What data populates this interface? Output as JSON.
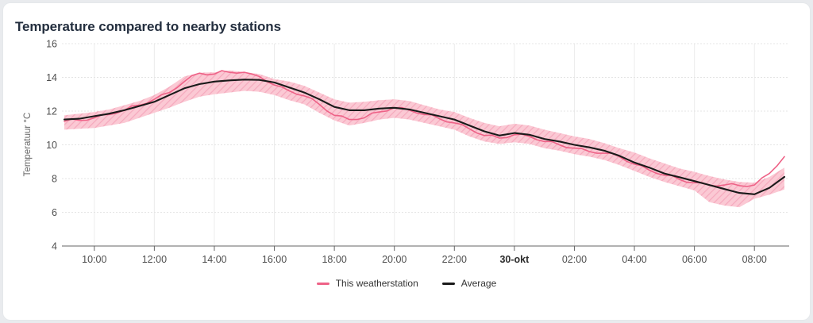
{
  "card": {
    "title": "Temperature compared to nearby stations"
  },
  "legend": {
    "items": [
      {
        "label": "This weatherstation",
        "color": "#ee6287"
      },
      {
        "label": "Average",
        "color": "#1a1a1a"
      }
    ]
  },
  "chart_data": {
    "type": "line",
    "title": "Temperature compared to nearby stations",
    "xlabel": "",
    "ylabel": "Temperatuur °C",
    "x_unit_hours_since": "09:00 (29 okt)",
    "xlim": [
      0,
      24
    ],
    "ylim": [
      4,
      16
    ],
    "grid": true,
    "legend_position": "bottom-center",
    "yticks": [
      16,
      14,
      12,
      10,
      8,
      6,
      4
    ],
    "xticks": [
      {
        "t": 1,
        "label": "10:00",
        "bold": false
      },
      {
        "t": 3,
        "label": "12:00",
        "bold": false
      },
      {
        "t": 5,
        "label": "14:00",
        "bold": false
      },
      {
        "t": 7,
        "label": "16:00",
        "bold": false
      },
      {
        "t": 9,
        "label": "18:00",
        "bold": false
      },
      {
        "t": 11,
        "label": "20:00",
        "bold": false
      },
      {
        "t": 13,
        "label": "22:00",
        "bold": false
      },
      {
        "t": 15,
        "label": "30-okt",
        "bold": true
      },
      {
        "t": 17,
        "label": "02:00",
        "bold": false
      },
      {
        "t": 19,
        "label": "04:00",
        "bold": false
      },
      {
        "t": 21,
        "label": "06:00",
        "bold": false
      },
      {
        "t": 23,
        "label": "08:00",
        "bold": false
      }
    ],
    "band": {
      "name": "nearby stations range",
      "fill": "#fbc9d4",
      "hatch": "#f5a9bd",
      "t_start": 0,
      "t_step": 0.5,
      "low": [
        10.9,
        10.95,
        11.0,
        11.15,
        11.3,
        11.6,
        11.9,
        12.2,
        12.55,
        12.85,
        13.0,
        13.1,
        13.2,
        13.15,
        12.95,
        12.65,
        12.4,
        11.9,
        11.45,
        11.15,
        11.3,
        11.5,
        11.6,
        11.5,
        11.3,
        11.1,
        10.9,
        10.5,
        10.2,
        10.05,
        10.15,
        10.05,
        9.8,
        9.65,
        9.45,
        9.3,
        9.1,
        8.8,
        8.45,
        8.1,
        7.8,
        7.55,
        7.3,
        6.6,
        6.4,
        6.3,
        6.8,
        7.05,
        7.35
      ],
      "high": [
        11.75,
        11.85,
        11.95,
        12.1,
        12.35,
        12.6,
        12.95,
        13.45,
        14.05,
        14.28,
        14.3,
        14.42,
        14.32,
        14.2,
        13.9,
        13.75,
        13.5,
        13.1,
        12.7,
        12.5,
        12.55,
        12.65,
        12.7,
        12.6,
        12.35,
        12.1,
        11.95,
        11.6,
        11.3,
        11.1,
        11.25,
        11.15,
        10.9,
        10.7,
        10.5,
        10.35,
        10.1,
        9.8,
        9.55,
        9.2,
        8.9,
        8.6,
        8.4,
        8.15,
        7.95,
        7.8,
        7.75,
        8.1,
        8.65
      ]
    },
    "series": [
      {
        "name": "This weatherstation",
        "color": "#ee6287",
        "width": 1.6,
        "t_start": 0,
        "t_step": 0.25,
        "values": [
          11.4,
          11.53,
          11.45,
          11.46,
          11.6,
          11.78,
          11.8,
          11.88,
          12.05,
          12.3,
          12.35,
          12.46,
          12.7,
          12.98,
          13.1,
          13.38,
          13.75,
          14.1,
          14.25,
          14.15,
          14.2,
          14.4,
          14.3,
          14.25,
          14.3,
          14.2,
          14.05,
          13.75,
          13.55,
          13.43,
          13.2,
          13.0,
          12.9,
          12.75,
          12.4,
          12.01,
          11.75,
          11.71,
          11.5,
          11.5,
          11.6,
          11.88,
          11.95,
          12.01,
          12.2,
          12.21,
          12.05,
          11.88,
          11.8,
          11.78,
          11.55,
          11.36,
          11.3,
          11.21,
          10.95,
          10.7,
          10.55,
          10.58,
          10.4,
          10.43,
          10.6,
          10.63,
          10.5,
          10.3,
          10.2,
          10.2,
          10.0,
          9.83,
          9.8,
          9.78,
          9.6,
          9.5,
          9.5,
          9.5,
          9.3,
          9.01,
          8.85,
          8.76,
          8.5,
          8.3,
          8.2,
          8.18,
          7.95,
          7.78,
          7.75,
          7.76,
          7.6,
          7.56,
          7.62,
          7.7,
          7.58,
          7.53,
          7.62,
          8.04,
          8.3,
          8.75,
          9.3
        ]
      },
      {
        "name": "Average",
        "color": "#1a1a1a",
        "width": 2.1,
        "t_start": 0,
        "t_step": 0.5,
        "values": [
          11.5,
          11.55,
          11.7,
          11.85,
          12.05,
          12.3,
          12.55,
          12.95,
          13.35,
          13.6,
          13.75,
          13.82,
          13.87,
          13.85,
          13.7,
          13.4,
          13.1,
          12.7,
          12.25,
          12.05,
          12.05,
          12.15,
          12.2,
          12.1,
          11.9,
          11.7,
          11.5,
          11.15,
          10.8,
          10.55,
          10.7,
          10.6,
          10.35,
          10.2,
          10.0,
          9.85,
          9.65,
          9.35,
          8.95,
          8.65,
          8.3,
          8.08,
          7.85,
          7.62,
          7.38,
          7.15,
          7.07,
          7.45,
          8.1
        ]
      }
    ]
  }
}
